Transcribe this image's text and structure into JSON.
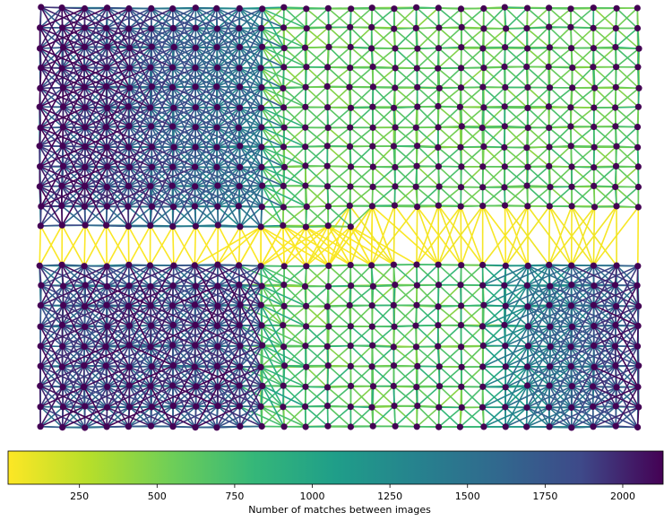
{
  "chart_data": {
    "type": "graph",
    "description_source": "network of image nodes on a grid; edges colored by match count",
    "grid": {
      "columns": 28,
      "rows_top": 12,
      "rows_bottom": 9
    },
    "colormap": "viridis_r",
    "colorbar": {
      "label": "Number of matches between images",
      "range": [
        20,
        2130
      ],
      "ticks": [
        250,
        500,
        750,
        1000,
        1250,
        1500,
        1750,
        2000
      ],
      "tick_labels": [
        "250",
        "500",
        "750",
        "1000",
        "1250",
        "1500",
        "1750",
        "2000"
      ],
      "orientation": "horizontal",
      "placement": "bottom"
    },
    "node_color": "#440154",
    "colors": {
      "viridis_low": "#fde725",
      "viridis_high": "#440154"
    }
  }
}
